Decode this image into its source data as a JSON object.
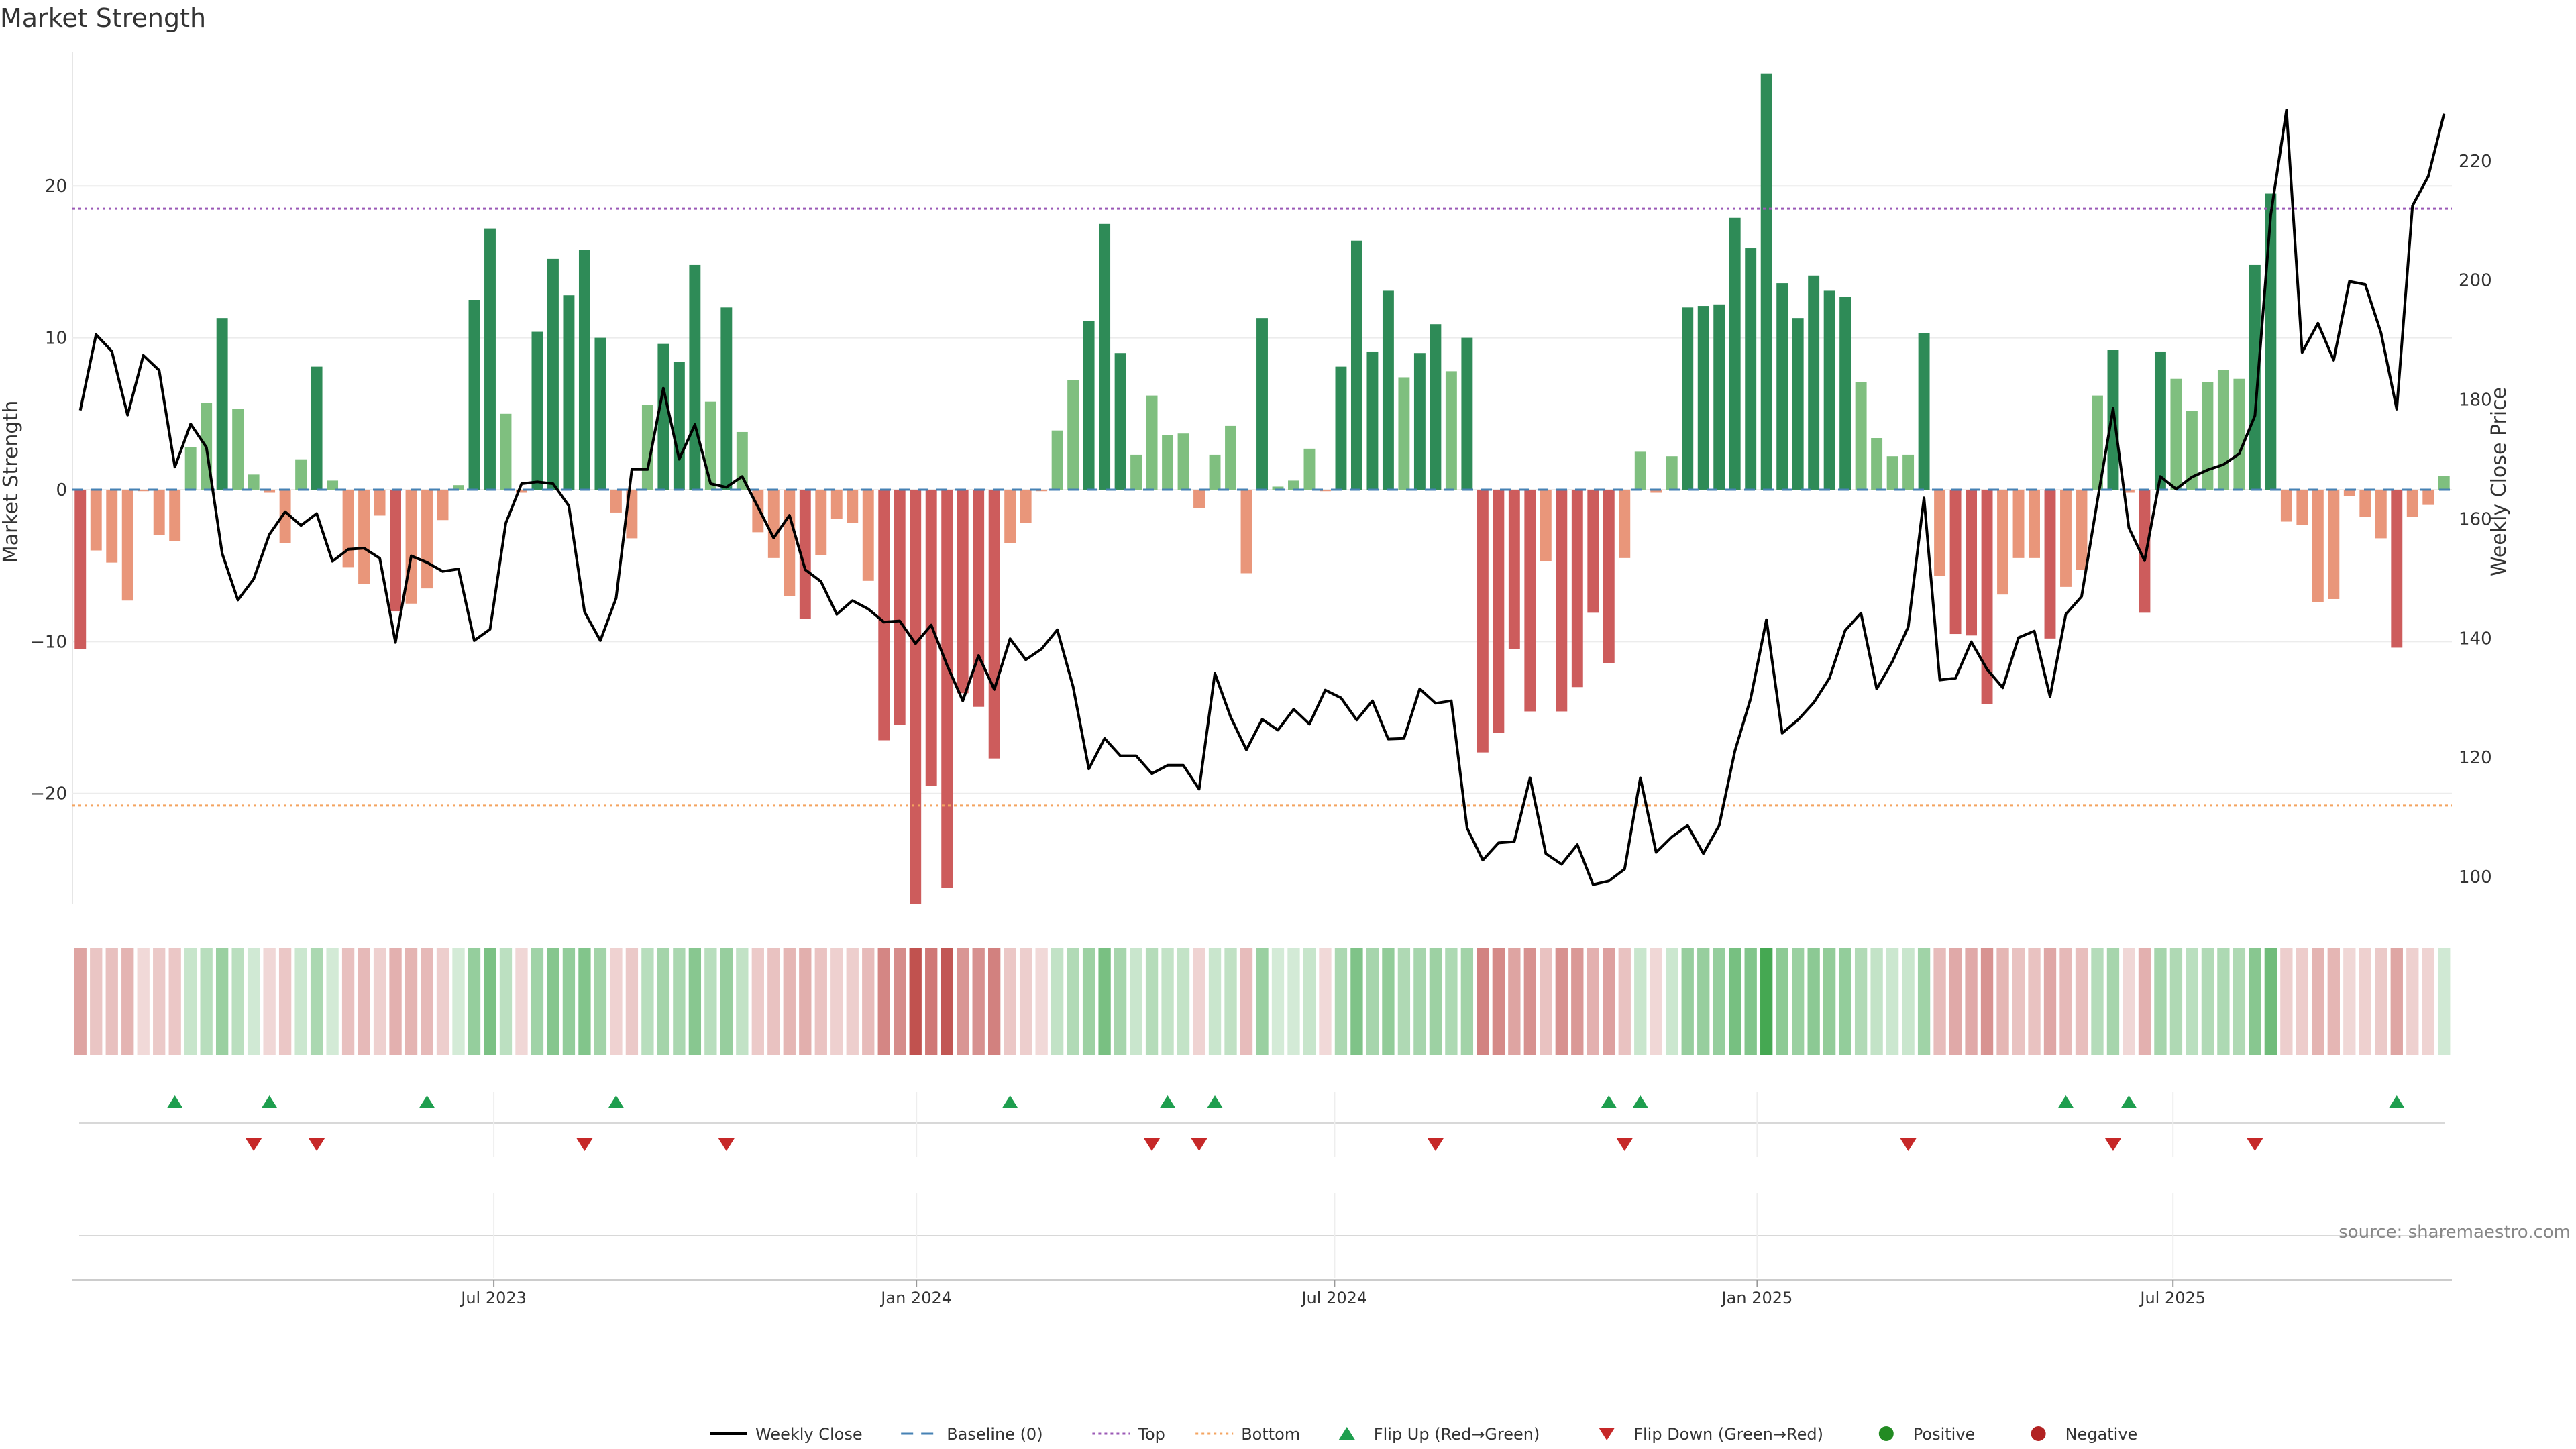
{
  "chart_data": {
    "type": "bar",
    "title": "Market Strength",
    "ylabel_left": "Market Strength",
    "ylabel_right": "Weekly Close Price",
    "source": "source: sharemaestro.com",
    "ylim_left": [
      -27.3,
      28.8
    ],
    "ylim_right": [
      95.4,
      238.2
    ],
    "y_ticks_left": [
      -20,
      -10,
      0,
      10,
      20
    ],
    "y_ticks_right": [
      100,
      120,
      140,
      160,
      180,
      200,
      220
    ],
    "top_level": 18.5,
    "bottom_level": -20.8,
    "x_start": "2023-01-02",
    "x_end": "2025-10-27",
    "date_ticks": [
      {
        "date": "2023-07-01",
        "label": "Jul 2023"
      },
      {
        "date": "2024-01-01",
        "label": "Jan 2024"
      },
      {
        "date": "2024-07-01",
        "label": "Jul 2024"
      },
      {
        "date": "2025-01-01",
        "label": "Jan 2025"
      },
      {
        "date": "2025-07-01",
        "label": "Jul 2025"
      }
    ],
    "strength": [
      -10.5,
      -4,
      -4.8,
      -7.3,
      -0.1,
      -3,
      -3.4,
      2.8,
      5.7,
      11.3,
      5.3,
      1,
      -0.2,
      -3.5,
      2,
      8.1,
      0.6,
      -5.1,
      -6.2,
      -1.7,
      -8,
      -7.5,
      -6.5,
      -2,
      0.3,
      12.5,
      17.2,
      5,
      -0.2,
      10.4,
      15.2,
      12.8,
      15.8,
      10,
      -1.5,
      -3.2,
      5.6,
      9.6,
      8.4,
      14.8,
      5.8,
      12,
      3.8,
      -2.8,
      -4.5,
      -7,
      -8.5,
      -4.3,
      -1.9,
      -2.2,
      -6,
      -16.5,
      -15.5,
      -27.3,
      -19.5,
      -26.2,
      -13.4,
      -14.3,
      -17.7,
      -3.5,
      -2.2,
      -0.1,
      3.9,
      7.2,
      11.1,
      17.5,
      9,
      2.3,
      6.2,
      3.6,
      3.7,
      -1.2,
      2.3,
      4.2,
      -5.5,
      11.3,
      0.2,
      0.6,
      2.7,
      -0.1,
      8.1,
      16.4,
      9.1,
      13.1,
      7.4,
      9,
      10.9,
      7.8,
      10,
      -17.3,
      -16,
      -10.5,
      -14.6,
      -4.7,
      -14.6,
      -13,
      -8.1,
      -11.4,
      -4.5,
      2.5,
      -0.2,
      2.2,
      12,
      12.1,
      12.2,
      17.9,
      15.9,
      27.4,
      13.6,
      11.3,
      14.1,
      13.1,
      12.7,
      7.1,
      3.4,
      2.2,
      2.3,
      10.3,
      -5.7,
      -9.5,
      -9.6,
      -14.1,
      -6.9,
      -4.5,
      -4.5,
      -9.8,
      -6.4,
      -5.3,
      6.2,
      9.2,
      -0.2,
      -8.1,
      9.1,
      7.3,
      5.2,
      7.1,
      7.9,
      7.3,
      14.8,
      19.5,
      -2.1,
      -2.3,
      -7.4,
      -7.2,
      -0.4,
      -1.8,
      -3.2,
      -10.4,
      -1.8,
      -1,
      0.9
    ],
    "close": [
      178.2,
      190.9,
      188.1,
      177.4,
      187.4,
      184.9,
      168.7,
      175.9,
      172,
      154.2,
      146.4,
      149.9,
      157.4,
      161.2,
      158.9,
      160.9,
      152.9,
      154.9,
      155.1,
      153.4,
      139.3,
      153.8,
      152.7,
      151.2,
      151.6,
      139.6,
      141.5,
      159.3,
      165.9,
      166.2,
      165.9,
      162.2,
      144.4,
      139.6,
      146.7,
      168.3,
      168.3,
      181.9,
      170,
      175.8,
      165.9,
      165.3,
      167.1,
      162,
      156.8,
      160.6,
      151.5,
      149.5,
      144,
      146.3,
      144.9,
      142.7,
      142.9,
      139.1,
      142.2,
      135.5,
      129.5,
      137.1,
      131.4,
      139.9,
      136.4,
      138.2,
      141.4,
      131.9,
      118.1,
      123.2,
      120.3,
      120.3,
      117.3,
      118.7,
      118.7,
      114.7,
      134.1,
      126.8,
      121.3,
      126.4,
      124.6,
      128.1,
      125.6,
      131.3,
      130,
      126.3,
      129.5,
      123.1,
      123.2,
      131.5,
      129.1,
      129.5,
      108.2,
      102.8,
      105.7,
      105.9,
      116.6,
      103.9,
      102.1,
      105.4,
      98.7,
      99.3,
      101.3,
      116.6,
      104.1,
      106.7,
      108.6,
      103.9,
      108.6,
      121.1,
      129.9,
      143.1,
      124.1,
      126.3,
      129.2,
      133.3,
      141.3,
      144.2,
      131.5,
      136.1,
      141.9,
      163.5,
      133,
      133.3,
      139.4,
      134.8,
      131.7,
      140.1,
      141.2,
      130.2,
      144,
      147,
      163,
      178.5,
      158.5,
      153,
      167.1,
      165,
      167,
      168.2,
      169.1,
      170.9,
      177.3,
      210.9,
      228.5,
      187.9,
      192.8,
      186.6,
      199.8,
      199.3,
      191.2,
      178.4,
      212.5,
      217.4,
      227.9
    ],
    "flip_up_indices": [
      6,
      12,
      22,
      34,
      59,
      69,
      72,
      97,
      99,
      126,
      130,
      147
    ],
    "flip_down_indices": [
      11,
      15,
      32,
      41,
      68,
      71,
      86,
      98,
      116,
      129,
      138
    ],
    "colors": {
      "strong_positive": "#2e8b57",
      "weak_positive": "#7fbf7f",
      "strong_negative": "#cd5c5c",
      "weak_negative": "#e9967a",
      "line": "#000000",
      "baseline": "#4682b4",
      "top": "#9b59b6",
      "bottom": "#f4a460",
      "flip_up": "#1e9e4e",
      "flip_down": "#c62828",
      "positive": "#228b22",
      "negative": "#b22222"
    },
    "legend": {
      "placement": "bottom-center",
      "items": [
        {
          "kind": "line",
          "label": "Weekly Close"
        },
        {
          "kind": "baseline",
          "label": "Baseline (0)"
        },
        {
          "kind": "top",
          "label": "Top"
        },
        {
          "kind": "bottom",
          "label": "Bottom"
        },
        {
          "kind": "flip_up",
          "label": "Flip Up (Red→Green)"
        },
        {
          "kind": "flip_down",
          "label": "Flip Down (Green→Red)"
        },
        {
          "kind": "positive",
          "label": "Positive"
        },
        {
          "kind": "negative",
          "label": "Negative"
        }
      ]
    }
  }
}
